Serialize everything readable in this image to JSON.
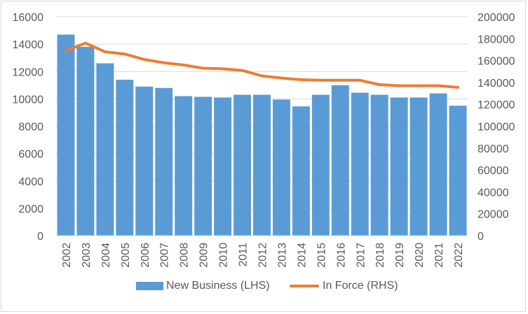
{
  "chart_data": {
    "type": "bar",
    "title": "",
    "xlabel": "",
    "ylabel": "",
    "categories": [
      "2002",
      "2003",
      "2004",
      "2005",
      "2006",
      "2007",
      "2008",
      "2009",
      "2010",
      "2011",
      "2012",
      "2013",
      "2014",
      "2015",
      "2016",
      "2017",
      "2018",
      "2019",
      "2020",
      "2021",
      "2022"
    ],
    "series": [
      {
        "name": "New Business (LHS)",
        "type": "bar",
        "axis": "left",
        "color": "#5b9bd5",
        "values": [
          14700,
          13800,
          12600,
          11400,
          10900,
          10800,
          10200,
          10150,
          10100,
          10300,
          10300,
          9950,
          9450,
          10300,
          11000,
          10450,
          10300,
          10100,
          10100,
          10400,
          9500
        ]
      },
      {
        "name": "In Force (RHS)",
        "type": "line",
        "axis": "right",
        "color": "#ed7d31",
        "values": [
          169000,
          176000,
          168000,
          166000,
          161000,
          158000,
          156000,
          153000,
          152500,
          151000,
          146000,
          144000,
          142500,
          142000,
          142000,
          142000,
          138000,
          137000,
          137000,
          137000,
          135500
        ]
      }
    ],
    "ylim_left": [
      0,
      16000
    ],
    "yticks_left": [
      "0",
      "2000",
      "4000",
      "6000",
      "8000",
      "10000",
      "12000",
      "14000",
      "16000"
    ],
    "ylim_right": [
      0,
      200000
    ],
    "yticks_right": [
      "0",
      "20000",
      "40000",
      "60000",
      "80000",
      "100000",
      "120000",
      "140000",
      "160000",
      "180000",
      "200000"
    ],
    "grid": true,
    "legend": "bottom"
  }
}
